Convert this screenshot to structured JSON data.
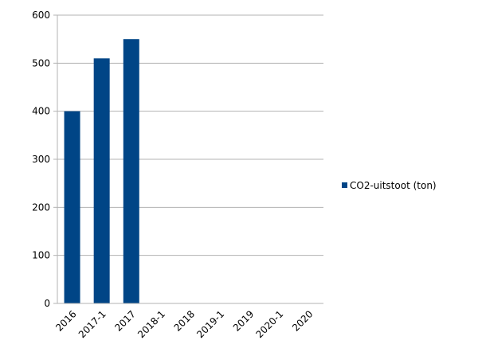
{
  "chart_data": {
    "type": "bar",
    "categories": [
      "2016",
      "2017-1",
      "2017",
      "2018-1",
      "2018",
      "2019-1",
      "2019",
      "2020-1",
      "2020"
    ],
    "series": [
      {
        "name": "CO2-uitstoot (ton)",
        "values": [
          400,
          510,
          550,
          0,
          0,
          0,
          0,
          0,
          0
        ],
        "color": "#004586"
      }
    ],
    "title": "",
    "xlabel": "",
    "ylabel": "",
    "ylim": [
      0,
      600
    ],
    "yticks": [
      0,
      100,
      200,
      300,
      400,
      500,
      600
    ],
    "grid": true,
    "legend_position": "right"
  }
}
